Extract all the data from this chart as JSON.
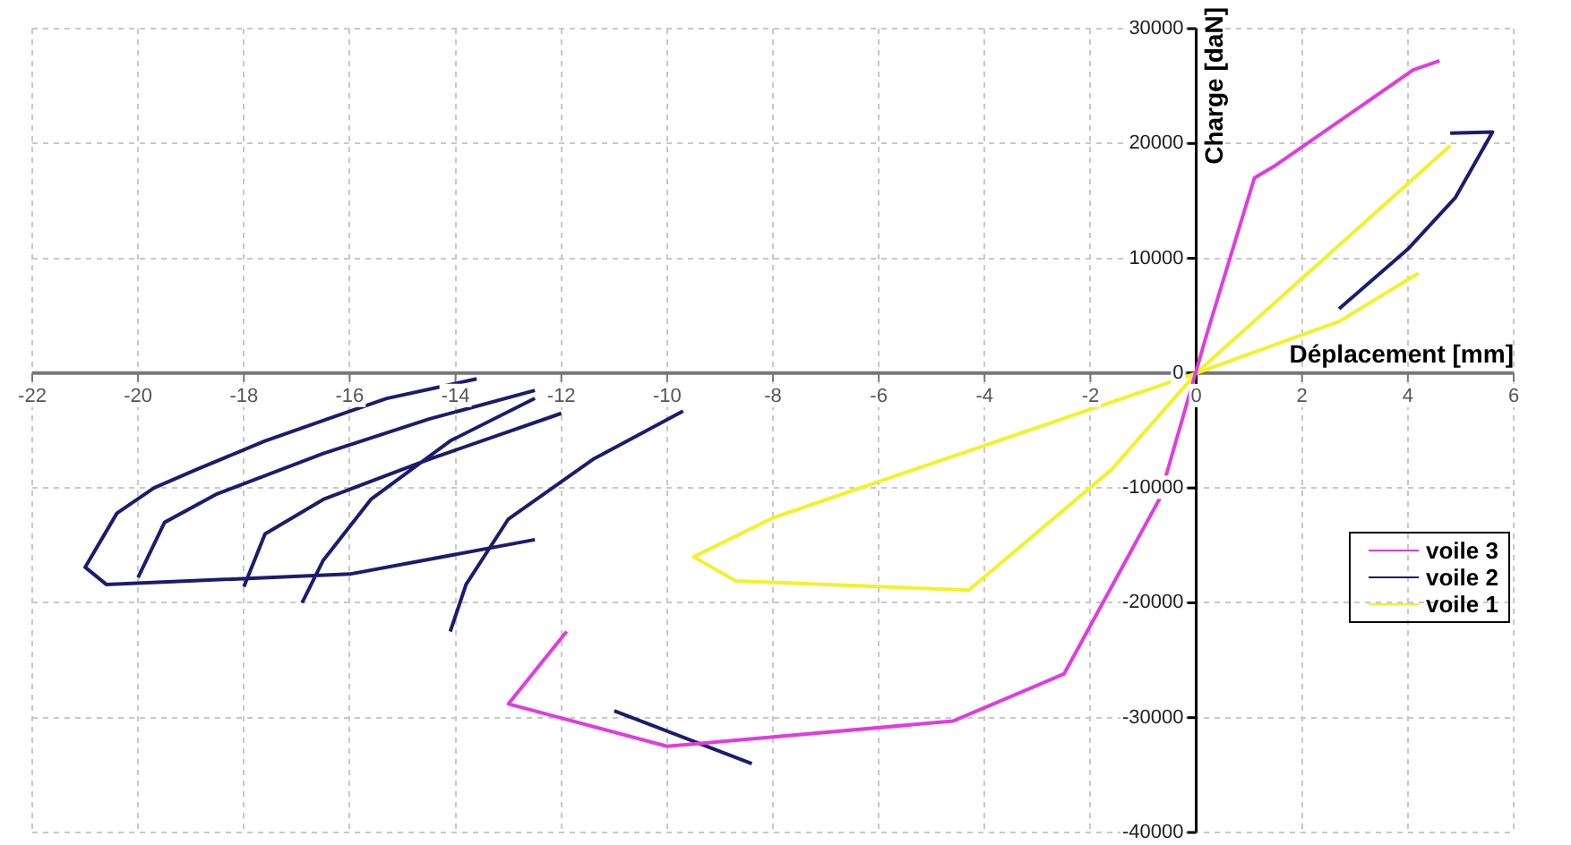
{
  "chart_data": {
    "type": "line",
    "xlabel": "Déplacement [mm]",
    "ylabel": "Charge [daN]",
    "xlim": [
      -22,
      6
    ],
    "xticks": [
      -22,
      -20,
      -18,
      -16,
      -14,
      -12,
      -10,
      -8,
      -6,
      -4,
      -2,
      0,
      2,
      4,
      6
    ],
    "ylim": [
      -40000,
      30000
    ],
    "yticks": [
      -40000,
      -30000,
      -20000,
      -10000,
      0,
      10000,
      20000,
      30000
    ],
    "grid": true,
    "legend": "right",
    "marker": "none",
    "line_style": "solid",
    "series": [
      {
        "name": "voile 3",
        "color": "#e03ce0",
        "x": [
          4.6,
          4.1,
          1.5,
          1.1,
          0.2,
          -0.7,
          -2.5,
          -4.6,
          -10,
          -13,
          -11.9
        ],
        "values": [
          27200,
          26400,
          18100,
          17000,
          3400,
          -11000,
          -26200,
          -30300,
          -32500,
          -28800,
          -22500
        ]
      },
      {
        "name": "voile 2",
        "color": "#1c1c6e",
        "x": [
          -12.5,
          -16,
          -20.6,
          -21,
          -20.4,
          -19.7,
          -18.9,
          -17.6,
          -16.3,
          -15.3,
          -13.6,
          null,
          -20,
          -19.5,
          -18.5,
          -16.5,
          -14.5,
          -12.5,
          null,
          -18,
          -17.6,
          -16.5,
          -14.5,
          -12,
          null,
          -16.9,
          -16.5,
          -15.6,
          -14.1,
          -12.5,
          null,
          -14.1,
          -13.8,
          -13,
          -11.4,
          -9.7,
          null,
          -11,
          -8.4,
          null,
          2.7,
          4,
          4.9,
          5.6,
          4.8
        ],
        "values": [
          -14500,
          -17500,
          -18400,
          -16900,
          -12200,
          -10000,
          -8400,
          -5900,
          -3800,
          -2200,
          -500,
          null,
          -17800,
          -13000,
          -10500,
          -7000,
          -4000,
          -1500,
          null,
          -18600,
          -14000,
          -11000,
          -7500,
          -3500,
          null,
          -20000,
          -16300,
          -11000,
          -5900,
          -2200,
          null,
          -22500,
          -18400,
          -12700,
          -7500,
          -3300,
          null,
          -29400,
          -34000,
          null,
          5600,
          10800,
          15300,
          21000,
          20900
        ]
      },
      {
        "name": "voile 1",
        "color": "#f2f22a",
        "x": [
          4.8,
          0,
          -1.6,
          -4.3,
          -8.7,
          -9.5,
          -8,
          0,
          2.7,
          4.2
        ],
        "values": [
          19800,
          0,
          -8400,
          -18900,
          -18100,
          -16000,
          -12600,
          0,
          4500,
          8700
        ]
      }
    ]
  }
}
